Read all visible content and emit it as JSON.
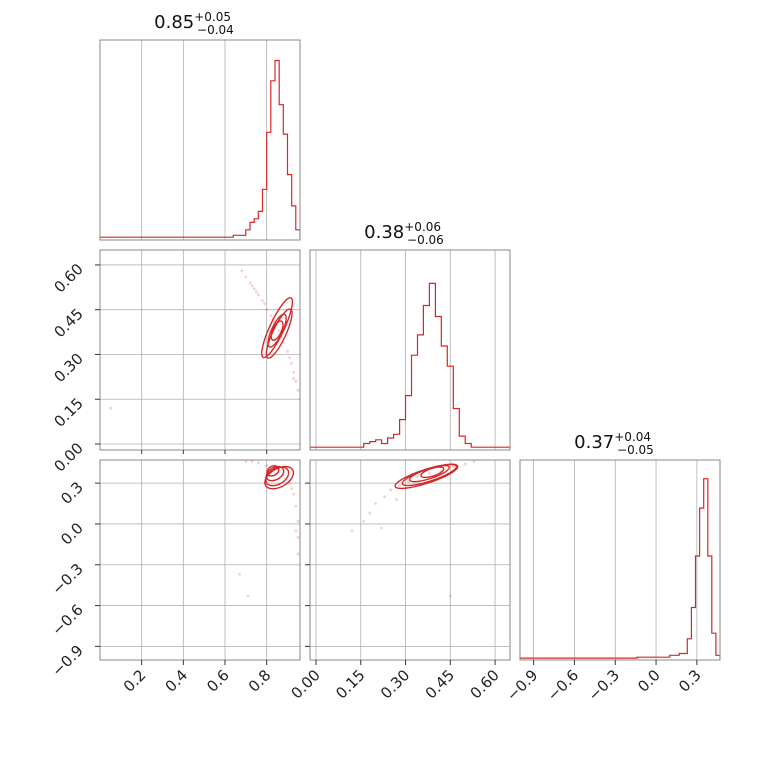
{
  "chart_data": {
    "type": "corner",
    "color": "#d62728",
    "parameters": [
      {
        "title": {
          "median": "0.85",
          "plus": "+0.05",
          "minus": "−0.04"
        },
        "range": [
          0.0,
          0.96
        ],
        "ticks": [
          0.2,
          0.4,
          0.6,
          0.8
        ],
        "tick_labels": [
          "0.2",
          "0.4",
          "0.6",
          "0.8"
        ],
        "bin_width": 0.02,
        "hist": [
          [
            0.0,
            0.02,
            0.01
          ],
          [
            0.02,
            0.64,
            0.01
          ],
          [
            0.64,
            0.7,
            0.02
          ],
          [
            0.7,
            0.72,
            0.05
          ],
          [
            0.72,
            0.74,
            0.09
          ],
          [
            0.74,
            0.76,
            0.11
          ],
          [
            0.76,
            0.78,
            0.15
          ],
          [
            0.78,
            0.8,
            0.27
          ],
          [
            0.8,
            0.82,
            0.58
          ],
          [
            0.82,
            0.84,
            0.86
          ],
          [
            0.84,
            0.86,
            0.97
          ],
          [
            0.86,
            0.88,
            0.73
          ],
          [
            0.88,
            0.9,
            0.57
          ],
          [
            0.9,
            0.92,
            0.35
          ],
          [
            0.92,
            0.94,
            0.18
          ],
          [
            0.94,
            0.96,
            0.05
          ]
        ]
      },
      {
        "title": {
          "median": "0.38",
          "plus": "+0.06",
          "minus": "−0.06"
        },
        "range": [
          -0.02,
          0.65
        ],
        "ticks": [
          0.0,
          0.15,
          0.3,
          0.45,
          0.6
        ],
        "tick_labels": [
          "0.00",
          "0.15",
          "0.30",
          "0.45",
          "0.60"
        ],
        "bin_width": 0.02,
        "hist": [
          [
            -0.02,
            0.16,
            0.01
          ],
          [
            0.16,
            0.18,
            0.03
          ],
          [
            0.18,
            0.2,
            0.04
          ],
          [
            0.2,
            0.22,
            0.05
          ],
          [
            0.22,
            0.24,
            0.03
          ],
          [
            0.24,
            0.26,
            0.06
          ],
          [
            0.26,
            0.28,
            0.08
          ],
          [
            0.28,
            0.3,
            0.16
          ],
          [
            0.3,
            0.32,
            0.29
          ],
          [
            0.32,
            0.34,
            0.51
          ],
          [
            0.34,
            0.36,
            0.62
          ],
          [
            0.36,
            0.38,
            0.78
          ],
          [
            0.38,
            0.4,
            0.9
          ],
          [
            0.4,
            0.42,
            0.72
          ],
          [
            0.42,
            0.44,
            0.56
          ],
          [
            0.44,
            0.46,
            0.45
          ],
          [
            0.46,
            0.48,
            0.22
          ],
          [
            0.48,
            0.5,
            0.07
          ],
          [
            0.5,
            0.52,
            0.03
          ],
          [
            0.52,
            0.65,
            0.01
          ]
        ]
      },
      {
        "title": {
          "median": "0.37",
          "plus": "+0.04",
          "minus": "−0.05"
        },
        "range": [
          -1.0,
          0.47
        ],
        "ticks": [
          -0.9,
          -0.6,
          -0.3,
          0.0,
          0.3
        ],
        "tick_labels": [
          "−0.9",
          "−0.6",
          "−0.3",
          "0.0",
          "0.3"
        ],
        "bin_width": 0.03,
        "hist": [
          [
            -1.0,
            -0.14,
            0.005
          ],
          [
            -0.14,
            -0.05,
            0.01
          ],
          [
            -0.05,
            0.1,
            0.01
          ],
          [
            0.1,
            0.17,
            0.02
          ],
          [
            0.17,
            0.23,
            0.03
          ],
          [
            0.23,
            0.26,
            0.11
          ],
          [
            0.26,
            0.29,
            0.28
          ],
          [
            0.29,
            0.32,
            0.56
          ],
          [
            0.32,
            0.35,
            0.82
          ],
          [
            0.35,
            0.38,
            0.98
          ],
          [
            0.38,
            0.41,
            0.56
          ],
          [
            0.41,
            0.44,
            0.14
          ],
          [
            0.44,
            0.47,
            0.02
          ]
        ]
      }
    ],
    "pairs": [
      {
        "x_param": 0,
        "y_param": 1,
        "contours": [
          {
            "cx": 0.85,
            "cy": 0.38,
            "sx": 0.02,
            "sy": 0.035
          },
          {
            "cx": 0.85,
            "cy": 0.38,
            "sx": 0.03,
            "sy": 0.06
          },
          {
            "cx": 0.86,
            "cy": 0.37,
            "sx": 0.04,
            "sy": 0.09
          },
          {
            "cx": 0.85,
            "cy": 0.39,
            "sx": 0.045,
            "sy": 0.11
          }
        ],
        "angle": -65,
        "points": [
          [
            0.68,
            0.58
          ],
          [
            0.7,
            0.56
          ],
          [
            0.72,
            0.54
          ],
          [
            0.74,
            0.52
          ],
          [
            0.76,
            0.5
          ],
          [
            0.78,
            0.48
          ],
          [
            0.8,
            0.45
          ],
          [
            0.82,
            0.43
          ],
          [
            0.84,
            0.41
          ],
          [
            0.86,
            0.38
          ],
          [
            0.88,
            0.34
          ],
          [
            0.9,
            0.31
          ],
          [
            0.92,
            0.27
          ],
          [
            0.93,
            0.24
          ],
          [
            0.94,
            0.21
          ],
          [
            0.95,
            0.18
          ],
          [
            0.96,
            0.15
          ],
          [
            0.05,
            0.12
          ],
          [
            0.93,
            0.22
          ],
          [
            0.91,
            0.29
          ],
          [
            0.87,
            0.36
          ],
          [
            0.83,
            0.42
          ],
          [
            0.79,
            0.47
          ],
          [
            0.75,
            0.51
          ],
          [
            0.73,
            0.53
          ]
        ]
      },
      {
        "x_param": 0,
        "y_param": 2,
        "contours": [
          {
            "cx": 0.83,
            "cy": 0.39,
            "sx": 0.03,
            "sy": 0.035
          },
          {
            "cx": 0.84,
            "cy": 0.37,
            "sx": 0.045,
            "sy": 0.055
          },
          {
            "cx": 0.85,
            "cy": 0.35,
            "sx": 0.06,
            "sy": 0.08
          },
          {
            "cx": 0.86,
            "cy": 0.34,
            "sx": 0.075,
            "sy": 0.095
          }
        ],
        "angle": -30,
        "points": [
          [
            0.7,
            0.46
          ],
          [
            0.73,
            0.46
          ],
          [
            0.76,
            0.45
          ],
          [
            0.8,
            0.43
          ],
          [
            0.84,
            0.41
          ],
          [
            0.88,
            0.36
          ],
          [
            0.91,
            0.3
          ],
          [
            0.93,
            0.22
          ],
          [
            0.94,
            0.13
          ],
          [
            0.95,
            0.02
          ],
          [
            0.95,
            -0.1
          ],
          [
            0.95,
            -0.22
          ],
          [
            0.67,
            -0.37
          ],
          [
            0.71,
            -0.53
          ],
          [
            0.94,
            -0.05
          ],
          [
            0.92,
            0.26
          ],
          [
            0.89,
            0.33
          ]
        ]
      },
      {
        "x_param": 1,
        "y_param": 2,
        "contours": [
          {
            "cx": 0.39,
            "cy": 0.38,
            "sx": 0.04,
            "sy": 0.025
          },
          {
            "cx": 0.38,
            "cy": 0.37,
            "sx": 0.07,
            "sy": 0.04
          },
          {
            "cx": 0.38,
            "cy": 0.36,
            "sx": 0.095,
            "sy": 0.055
          },
          {
            "cx": 0.37,
            "cy": 0.35,
            "sx": 0.11,
            "sy": 0.065
          }
        ],
        "angle": -18,
        "points": [
          [
            0.2,
            0.15
          ],
          [
            0.23,
            0.2
          ],
          [
            0.25,
            0.25
          ],
          [
            0.28,
            0.28
          ],
          [
            0.31,
            0.31
          ],
          [
            0.34,
            0.35
          ],
          [
            0.38,
            0.37
          ],
          [
            0.42,
            0.39
          ],
          [
            0.46,
            0.42
          ],
          [
            0.5,
            0.44
          ],
          [
            0.53,
            0.46
          ],
          [
            0.12,
            -0.05
          ],
          [
            0.16,
            0.02
          ],
          [
            0.18,
            0.08
          ],
          [
            0.22,
            -0.03
          ],
          [
            0.45,
            -0.53
          ],
          [
            0.27,
            0.18
          ]
        ]
      }
    ]
  }
}
